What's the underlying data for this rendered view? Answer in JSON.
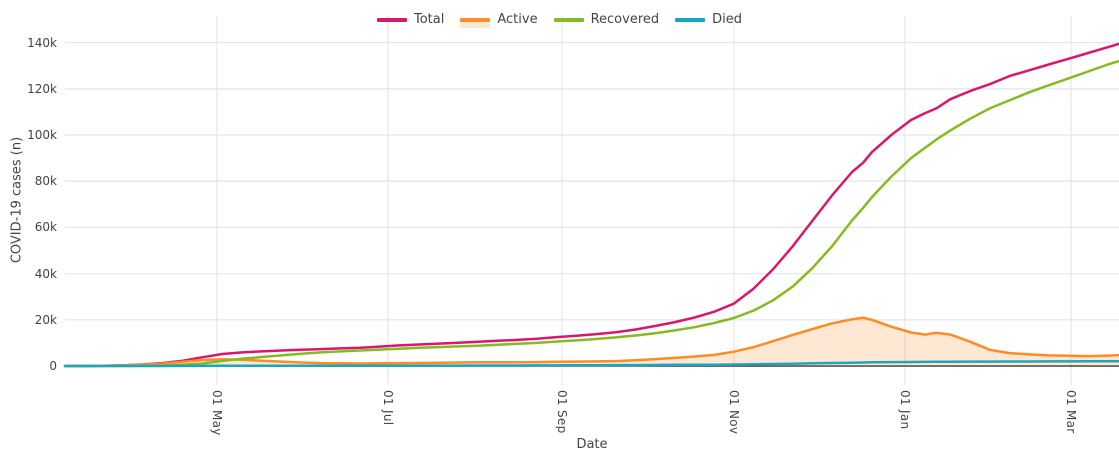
{
  "chart_data": {
    "type": "line",
    "title": "",
    "xlabel": "Date",
    "ylabel": "COVID-19 cases (n)",
    "grid": true,
    "legend_position": "top-center",
    "background": "#ffffff",
    "grid_color": "#e7e7e7",
    "zeroline_color": "#3b3b3b",
    "text_color": "#444444",
    "ylim": [
      0,
      151000
    ],
    "xlim": [
      "2020-03-08",
      "2021-03-18"
    ],
    "ytick_values": [
      0,
      20000,
      40000,
      60000,
      80000,
      100000,
      120000,
      140000
    ],
    "ytick_labels": [
      "0",
      "20k",
      "40k",
      "60k",
      "80k",
      "100k",
      "120k",
      "140k"
    ],
    "xtick_dates": [
      "2020-05-01",
      "2020-07-01",
      "2020-09-01",
      "2020-11-01",
      "2021-01-01",
      "2021-03-01"
    ],
    "xtick_labels": [
      "01 May",
      "01 Jul",
      "01 Sep",
      "01 Nov",
      "01 Jan",
      "01 Mar"
    ],
    "x": [
      "2020-03-08",
      "2020-03-15",
      "2020-03-22",
      "2020-03-29",
      "2020-04-05",
      "2020-04-12",
      "2020-04-19",
      "2020-04-26",
      "2020-05-03",
      "2020-05-10",
      "2020-05-17",
      "2020-05-24",
      "2020-05-31",
      "2020-06-07",
      "2020-06-14",
      "2020-06-21",
      "2020-06-28",
      "2020-07-05",
      "2020-07-12",
      "2020-07-19",
      "2020-07-26",
      "2020-08-02",
      "2020-08-09",
      "2020-08-16",
      "2020-08-23",
      "2020-08-30",
      "2020-09-06",
      "2020-09-13",
      "2020-09-20",
      "2020-09-27",
      "2020-10-04",
      "2020-10-11",
      "2020-10-18",
      "2020-10-25",
      "2020-11-01",
      "2020-11-08",
      "2020-11-15",
      "2020-11-22",
      "2020-11-29",
      "2020-12-06",
      "2020-12-13",
      "2020-12-17",
      "2020-12-20",
      "2020-12-27",
      "2021-01-03",
      "2021-01-08",
      "2021-01-12",
      "2021-01-17",
      "2021-01-24",
      "2021-01-31",
      "2021-02-07",
      "2021-02-14",
      "2021-02-21",
      "2021-02-28",
      "2021-03-07",
      "2021-03-14",
      "2021-03-18"
    ],
    "series": [
      {
        "name": "Total",
        "color": "#d6186e",
        "values": [
          0,
          20,
          100,
          300,
          700,
          1300,
          2300,
          3800,
          5200,
          5900,
          6300,
          6700,
          7000,
          7300,
          7600,
          7900,
          8400,
          8900,
          9300,
          9700,
          10100,
          10500,
          10900,
          11300,
          11800,
          12500,
          13100,
          13800,
          14600,
          15800,
          17300,
          19000,
          21000,
          23500,
          27000,
          33500,
          42000,
          52000,
          63000,
          74000,
          84000,
          88000,
          92500,
          100000,
          106500,
          109500,
          111500,
          115500,
          119000,
          122000,
          125500,
          128000,
          130500,
          133000,
          135500,
          138000,
          139500
        ]
      },
      {
        "name": "Active",
        "color": "#fd8c25",
        "fill": "tozeroy",
        "fill_color": "rgba(253,139,35,0.2)",
        "values": [
          0,
          20,
          90,
          250,
          600,
          1100,
          1800,
          2600,
          2950,
          2700,
          2300,
          1900,
          1500,
          1250,
          1150,
          1100,
          1150,
          1250,
          1300,
          1400,
          1500,
          1600,
          1600,
          1600,
          1700,
          1800,
          1900,
          2000,
          2100,
          2500,
          3000,
          3500,
          4100,
          4800,
          6200,
          8200,
          10800,
          13500,
          16000,
          18500,
          20200,
          20900,
          20000,
          17000,
          14500,
          13600,
          14400,
          13600,
          10500,
          7000,
          5600,
          5000,
          4600,
          4400,
          4300,
          4500,
          4700
        ]
      },
      {
        "name": "Recovered",
        "color": "#85bb22",
        "values": [
          0,
          0,
          10,
          30,
          80,
          200,
          500,
          1100,
          2200,
          3100,
          3900,
          4600,
          5300,
          5900,
          6300,
          6700,
          7100,
          7500,
          7900,
          8200,
          8500,
          8800,
          9200,
          9600,
          10000,
          10600,
          11100,
          11700,
          12400,
          13200,
          14200,
          15400,
          16800,
          18600,
          20800,
          24000,
          28500,
          34500,
          42500,
          52000,
          63000,
          68500,
          73000,
          82000,
          90000,
          94500,
          98000,
          102000,
          107000,
          111500,
          115000,
          118500,
          121500,
          124500,
          127500,
          130500,
          132000
        ]
      },
      {
        "name": "Died",
        "color": "#18a6c6",
        "values": [
          0,
          0,
          3,
          6,
          12,
          20,
          35,
          50,
          65,
          80,
          90,
          95,
          100,
          105,
          110,
          120,
          130,
          140,
          150,
          165,
          180,
          200,
          215,
          230,
          250,
          280,
          310,
          340,
          370,
          400,
          450,
          500,
          520,
          550,
          650,
          750,
          880,
          1000,
          1150,
          1300,
          1450,
          1500,
          1600,
          1680,
          1750,
          1780,
          1800,
          1850,
          1890,
          1920,
          1940,
          1960,
          1980,
          2000,
          2020,
          2050,
          2060
        ]
      }
    ]
  }
}
